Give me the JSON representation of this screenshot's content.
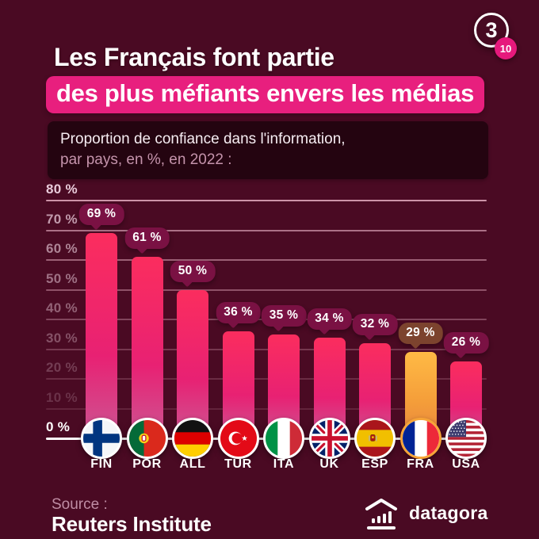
{
  "page": {
    "background_color": "#4a0a23",
    "accent_pink": "#e81f7e"
  },
  "pagination": {
    "current": "3",
    "total": "10"
  },
  "header": {
    "title_line1": "Les Français font partie",
    "title_line2": "des plus méfiants envers les médias"
  },
  "subtitle": {
    "line1": "Proportion de confiance dans l'information,",
    "line2": "par pays, en %, en 2022 :"
  },
  "chart_data": {
    "type": "bar",
    "title": "Proportion de confiance dans l'information, par pays, en %, en 2022",
    "xlabel": "",
    "ylabel": "",
    "categories": [
      "FIN",
      "POR",
      "ALL",
      "TUR",
      "ITA",
      "UK",
      "ESP",
      "FRA",
      "USA"
    ],
    "values": [
      69,
      61,
      50,
      36,
      35,
      34,
      32,
      29,
      26
    ],
    "value_labels": [
      "69 %",
      "61 %",
      "50 %",
      "36 %",
      "35 %",
      "34 %",
      "32 %",
      "29 %",
      "26 %"
    ],
    "flags": [
      "finland",
      "portugal",
      "germany",
      "turkey",
      "italy",
      "uk",
      "spain",
      "france",
      "usa"
    ],
    "highlight_index": 7,
    "highlight_country": "FRA",
    "ylim": [
      0,
      80
    ],
    "y_ticks": [
      "80 %",
      "70 %",
      "60 %",
      "50 %",
      "40 %",
      "30 %",
      "20 %",
      "10 %",
      "0 %"
    ],
    "grid": true,
    "legend": "none",
    "bar_color": "#ee2170",
    "bar_highlight_color": "#f59f3a",
    "bubble_color": "#7a1143",
    "bubble_highlight_color": "#7c432e",
    "flag_ring_color": "#ffffff",
    "flag_ring_highlight_color": "#f7a437"
  },
  "footer": {
    "source_label": "Source :",
    "source_name": "Reuters Institute",
    "brand": "datagora",
    "brand_icon": "datagora-building-chart-icon"
  }
}
